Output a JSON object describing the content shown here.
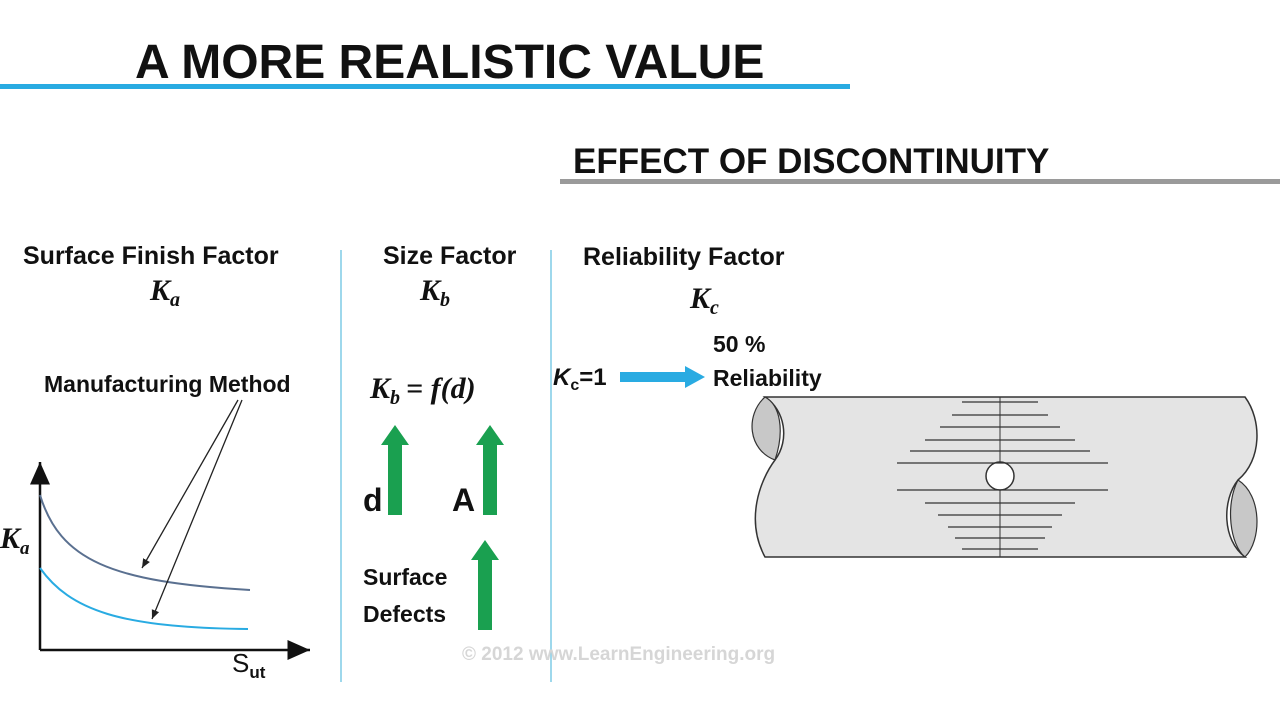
{
  "header": {
    "title": "A MORE REALISTIC VALUE",
    "subtitle": "EFFECT OF DISCONTINUITY"
  },
  "columns": [
    {
      "heading": "Surface Finish Factor",
      "symbol": {
        "base": "K",
        "sub": "a"
      },
      "annotation": "Manufacturing Method",
      "plot": {
        "y_label": {
          "base": "K",
          "sub": "a"
        },
        "x_label": {
          "base": "S",
          "sub": "ut"
        }
      }
    },
    {
      "heading": "Size Factor",
      "symbol": {
        "base": "K",
        "sub": "b"
      },
      "equation": {
        "lhs": {
          "base": "K",
          "sub": "b"
        },
        "rhs": "= f(d)"
      },
      "arrows": [
        "d",
        "A"
      ],
      "effect": [
        "Surface",
        "Defects"
      ]
    },
    {
      "heading": "Reliability Factor",
      "symbol": {
        "base": "K",
        "sub": "c"
      },
      "condition": {
        "lhs": {
          "base": "K",
          "sub": "c"
        },
        "rhs": "=1"
      },
      "result": [
        "50 %",
        "Reliability"
      ]
    }
  ],
  "watermark": "© 2012 www.LearnEngineering.org"
}
